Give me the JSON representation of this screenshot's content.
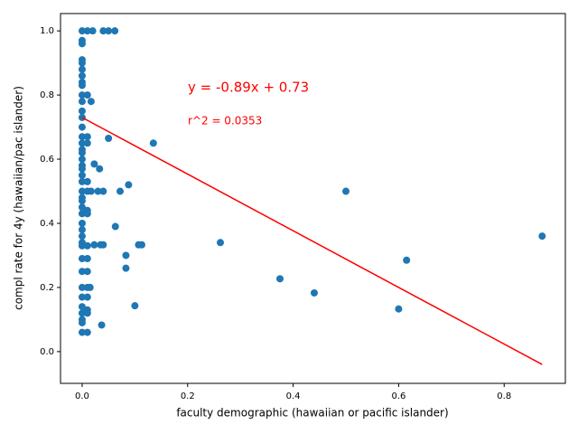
{
  "chart_data": {
    "type": "scatter",
    "xlabel": "faculty demographic (hawaiian or pacific islander)",
    "ylabel": "compl rate for 4y (hawaiian/pac islander)",
    "annotations": [
      "y = -0.89x + 0.73",
      "r^2 = 0.0353"
    ],
    "color": "#1f77b4",
    "x": [
      0,
      0,
      0,
      0,
      0,
      0,
      0,
      0,
      0,
      0,
      0,
      0,
      0,
      0,
      0,
      0,
      0,
      0,
      0,
      0,
      0,
      0,
      0,
      0,
      0,
      0,
      0,
      0,
      0,
      0,
      0,
      0,
      0,
      0,
      0,
      0,
      0,
      0,
      0,
      0,
      0,
      0,
      0.01,
      0.01,
      0.01,
      0.01,
      0.01,
      0.01,
      0.01,
      0.01,
      0.01,
      0.01,
      0.01,
      0.01,
      0.01,
      0.01,
      0.01,
      0.01,
      0.02,
      0.04,
      0.05,
      0.062,
      0.017,
      0.05,
      0.135,
      0.023,
      0.033,
      0.017,
      0.03,
      0.04,
      0.072,
      0.088,
      0.063,
      0.023,
      0.035,
      0.04,
      0.107,
      0.113,
      0.083,
      0.083,
      0.015,
      0.1,
      0.037,
      0.262,
      0.375,
      0.44,
      0.5,
      0.6,
      0.615,
      0.872
    ],
    "values": [
      1.0,
      0.97,
      0.96,
      0.91,
      0.9,
      0.88,
      0.86,
      0.84,
      0.83,
      0.8,
      0.78,
      0.75,
      0.73,
      0.7,
      0.67,
      0.65,
      0.63,
      0.62,
      0.6,
      0.58,
      0.57,
      0.55,
      0.53,
      0.5,
      0.48,
      0.47,
      0.45,
      0.43,
      0.4,
      0.38,
      0.36,
      0.34,
      0.33,
      0.29,
      0.25,
      0.2,
      0.17,
      0.14,
      0.12,
      0.1,
      0.09,
      0.06,
      1.0,
      0.8,
      0.67,
      0.65,
      0.53,
      0.5,
      0.44,
      0.43,
      0.33,
      0.29,
      0.25,
      0.2,
      0.17,
      0.13,
      0.12,
      0.06,
      1.0,
      1.0,
      1.0,
      1.0,
      0.78,
      0.665,
      0.65,
      0.585,
      0.57,
      0.5,
      0.5,
      0.5,
      0.5,
      0.52,
      0.39,
      0.333,
      0.333,
      0.333,
      0.333,
      0.333,
      0.3,
      0.26,
      0.2,
      0.143,
      0.083,
      0.34,
      0.227,
      0.183,
      0.5,
      0.133,
      0.285,
      0.36
    ],
    "fit_line": {
      "color": "#ff0000",
      "x": [
        0,
        0.872
      ],
      "values": [
        0.73,
        -0.04
      ]
    },
    "annotation_color": "#ff0000",
    "xlim": [
      -0.041,
      0.916
    ],
    "ylim": [
      -0.099,
      1.054
    ],
    "xticks": [
      {
        "value": 0,
        "label": "0.0"
      },
      0.2,
      0.4,
      0.6,
      0.8
    ],
    "yticks": [
      {
        "value": 0,
        "label": "0.0"
      },
      0.2,
      0.4,
      0.6,
      0.8,
      {
        "value": 1,
        "label": "1.0"
      }
    ]
  }
}
